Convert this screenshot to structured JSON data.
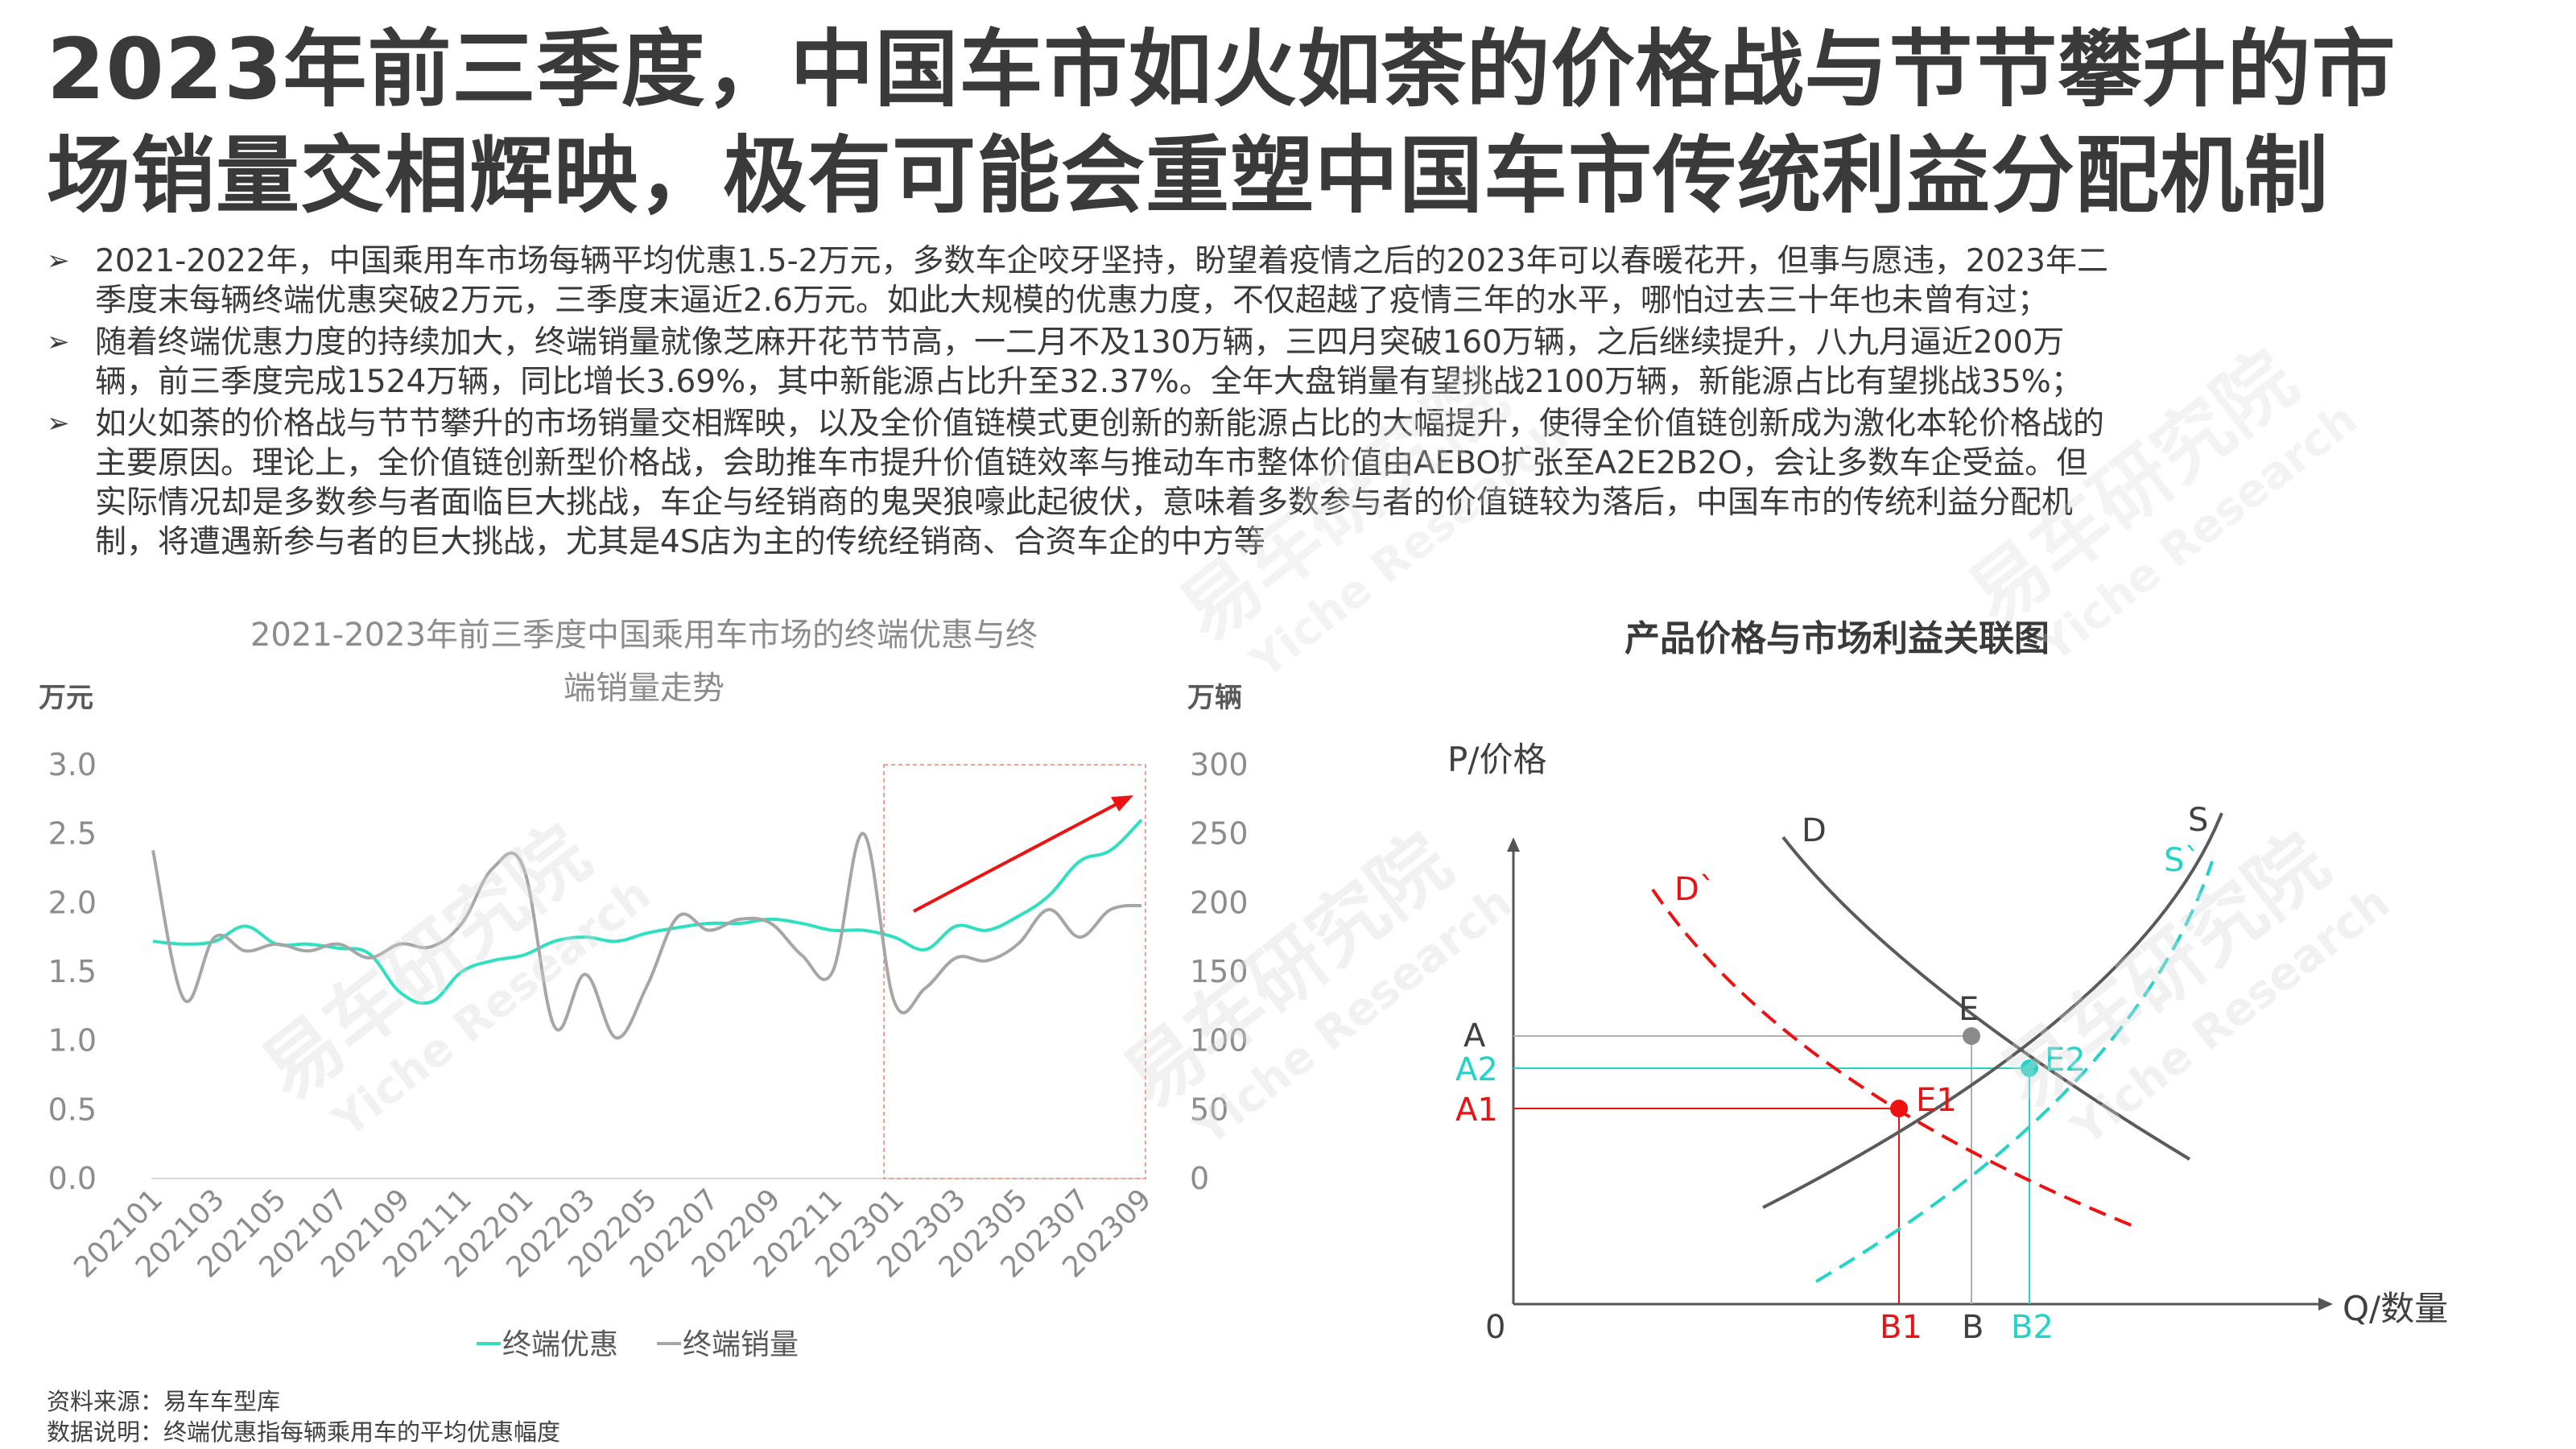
{
  "page": {
    "title_line1": "2023年前三季度，中国车市如火如荼的价格战与节节攀升的市",
    "title_line2": "场销量交相辉映，极有可能会重塑中国车市传统利益分配机制",
    "bullets": [
      [
        "2021-2022年，中国乘用车市场每辆平均优惠1.5-2万元，多数车企咬牙坚持，盼望着疫情之后的2023年可以春暖花开，但事与愿违，2023年二",
        "季度末每辆终端优惠突破2万元，三季度末逼近2.6万元。如此大规模的优惠力度，不仅超越了疫情三年的水平，哪怕过去三十年也未曾有过；"
      ],
      [
        "随着终端优惠力度的持续加大，终端销量就像芝麻开花节节高，一二月不及130万辆，三四月突破160万辆，之后继续提升，八九月逼近200万",
        "辆，前三季度完成1524万辆，同比增长3.69%，其中新能源占比升至32.37%。全年大盘销量有望挑战2100万辆，新能源占比有望挑战35%；"
      ],
      [
        "如火如荼的价格战与节节攀升的市场销量交相辉映，以及全价值链模式更创新的新能源占比的大幅提升，使得全价值链创新成为激化本轮价格战的",
        "主要原因。理论上，全价值链创新型价格战，会助推车市提升价值链效率与推动车市整体价值由AEBO扩张至A2E2B2O，会让多数车企受益。但",
        "实际情况却是多数参与者面临巨大挑战，车企与经销商的鬼哭狼嚎此起彼伏，意味着多数参与者的价值链较为落后，中国车市的传统利益分配机",
        "制，将遭遇新参与者的巨大挑战，尤其是4S店为主的传统经销商、合资车企的中方等"
      ]
    ],
    "watermark_cn": "易车研究院",
    "watermark_en": "Yiche Research",
    "source_line1": "资料来源：易车车型库",
    "source_line2": "数据说明：终端优惠指每辆乘用车的平均优惠幅度"
  },
  "chart_data": [
    {
      "type": "line",
      "title_line1": "2021-2023年前三季度中国乘用车市场的终端优惠与终",
      "title_line2": "端销量走势",
      "ylabel_left": "万元",
      "ylabel_right": "万辆",
      "ylim_left": [
        0,
        3.0
      ],
      "ylim_right": [
        0,
        300
      ],
      "yticks_left": [
        "0.0",
        "0.5",
        "1.0",
        "1.5",
        "2.0",
        "2.5",
        "3.0"
      ],
      "yticks_right": [
        "0",
        "50",
        "100",
        "150",
        "200",
        "250",
        "300"
      ],
      "x": [
        "202101",
        "202102",
        "202103",
        "202104",
        "202105",
        "202106",
        "202107",
        "202108",
        "202109",
        "202110",
        "202111",
        "202112",
        "202201",
        "202202",
        "202203",
        "202204",
        "202205",
        "202206",
        "202207",
        "202208",
        "202209",
        "202210",
        "202211",
        "202212",
        "202301",
        "202302",
        "202303",
        "202304",
        "202305",
        "202306",
        "202307",
        "202308",
        "202309"
      ],
      "xtick_labels": [
        "202101",
        "202103",
        "202105",
        "202107",
        "202109",
        "202111",
        "202201",
        "202203",
        "202205",
        "202207",
        "202209",
        "202211",
        "202301",
        "202303",
        "202305",
        "202307",
        "202309"
      ],
      "series": [
        {
          "name": "终端优惠",
          "axis": "left",
          "color": "#2fe0c0",
          "values": [
            1.72,
            1.7,
            1.72,
            1.83,
            1.7,
            1.7,
            1.67,
            1.63,
            1.35,
            1.28,
            1.5,
            1.58,
            1.62,
            1.72,
            1.75,
            1.72,
            1.78,
            1.82,
            1.85,
            1.85,
            1.88,
            1.85,
            1.8,
            1.8,
            1.75,
            1.66,
            1.83,
            1.8,
            1.9,
            2.05,
            2.3,
            2.38,
            2.6
          ]
        },
        {
          "name": "终端销量",
          "axis": "right",
          "color": "#a6a6a6",
          "values": [
            238,
            130,
            175,
            165,
            170,
            165,
            170,
            160,
            170,
            168,
            185,
            225,
            225,
            110,
            148,
            102,
            140,
            190,
            180,
            188,
            185,
            162,
            150,
            250,
            128,
            138,
            160,
            158,
            170,
            195,
            175,
            195,
            198
          ]
        }
      ],
      "legend": "bottom"
    },
    {
      "type": "diagram",
      "title": "产品价格与市场利益关联图",
      "ylabel": "P/价格",
      "xlabel": "Q/数量",
      "origin_label": "0",
      "curves": {
        "D": "D",
        "S": "S",
        "D2": "D`",
        "S2": "S`"
      },
      "points": {
        "E": "E",
        "E1": "E1",
        "E2": "E2"
      },
      "y_labels": {
        "A": "A",
        "A2": "A2",
        "A1": "A1"
      },
      "x_labels": {
        "B1": "B1",
        "B": "B",
        "B2": "B2"
      },
      "colors": {
        "gray": "#5a5a5a",
        "red": "#ee1111",
        "cyan": "#22d4c8"
      }
    }
  ]
}
